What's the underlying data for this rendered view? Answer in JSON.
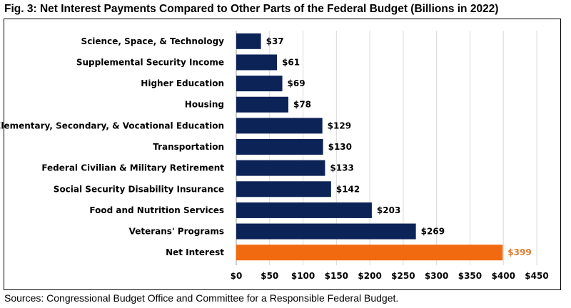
{
  "title": "Fig. 3: Net Interest Payments Compared to Other Parts of the Federal Budget (Billions in 2022)",
  "source": "Sources: Congressional Budget Office and Committee for a Responsible Federal Budget.",
  "chart_data": {
    "type": "bar",
    "orientation": "horizontal",
    "categories": [
      "Science, Space, & Technology",
      "Supplemental Security Income",
      "Higher Education",
      "Housing",
      "Elementary, Secondary, & Vocational Education",
      "Transportation",
      "Federal Civilian & Military Retirement",
      "Social Security Disability Insurance",
      "Food and Nutrition Services",
      "Veterans' Programs",
      "Net Interest"
    ],
    "values": [
      37,
      61,
      69,
      78,
      129,
      130,
      133,
      142,
      203,
      269,
      399
    ],
    "data_labels": [
      "$37",
      "$61",
      "$69",
      "$78",
      "$129",
      "$130",
      "$133",
      "$142",
      "$203",
      "$269",
      "$399"
    ],
    "xlim": [
      0,
      450
    ],
    "xticks": [
      0,
      50,
      100,
      150,
      200,
      250,
      300,
      350,
      400,
      450
    ],
    "xtick_labels": [
      "$0",
      "$50",
      "$100",
      "$150",
      "$200",
      "$250",
      "$300",
      "$350",
      "$400",
      "$450"
    ],
    "grid": "vertical",
    "colors": {
      "default": "#0c2357",
      "highlight": "#f26a0f",
      "highlight_label": "#e07b2e"
    },
    "highlight_category": "Net Interest"
  }
}
